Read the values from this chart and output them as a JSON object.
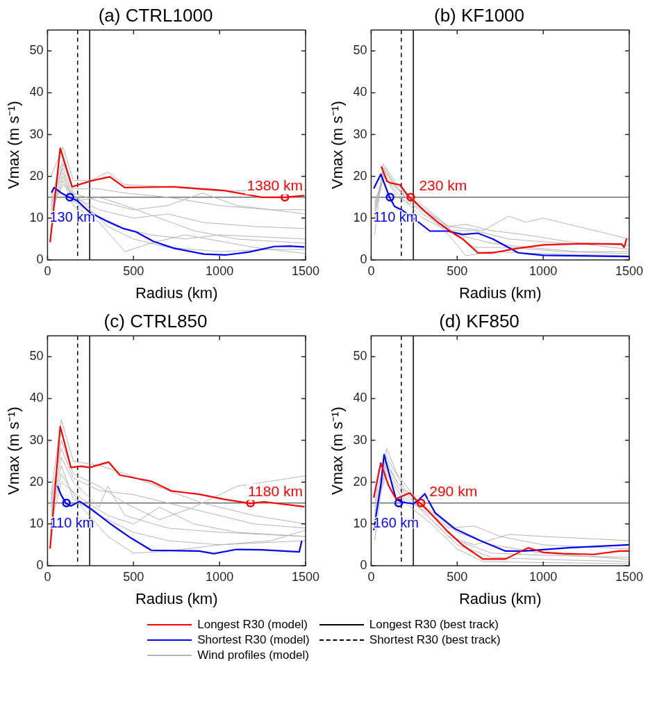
{
  "chart_data": [
    {
      "type": "line",
      "title": "(a) CTRL1000",
      "xlabel": "Radius (km)",
      "ylabel": "Vmax (m s⁻¹)",
      "xlim": [
        0,
        1500
      ],
      "xticks": [
        0,
        500,
        1000,
        1500
      ],
      "ylim": [
        0,
        55
      ],
      "yticks": [
        0,
        10,
        20,
        30,
        40,
        50
      ],
      "legend": "bottom",
      "series": [
        {
          "name": "Longest R30 (model)",
          "color": "#ff0000",
          "x": [
            15,
            74,
            143,
            252,
            362,
            449,
            734,
            1026,
            1245,
            1383,
            1493
          ],
          "values": [
            4.2,
            26.7,
            17.5,
            18.9,
            19.9,
            17.3,
            17.5,
            16.6,
            15,
            15,
            15.4
          ]
        },
        {
          "name": "Shortest R30 (model)",
          "color": "#0000ff",
          "x": [
            23,
            38,
            77,
            125,
            172,
            245,
            340,
            442,
            515,
            617,
            734,
            909,
            1040,
            1172,
            1317,
            1405,
            1493
          ],
          "values": [
            16.1,
            17.3,
            16.1,
            15,
            14.2,
            11.4,
            9.4,
            7.5,
            6.7,
            4.4,
            2.8,
            1.4,
            1.2,
            1.9,
            3.2,
            3.3,
            3.1
          ]
        },
        {
          "name": "Wind profiles (model)",
          "color": "#b4b4b4",
          "x": [
            20,
            90,
            150,
            250,
            350,
            450,
            700,
            1000,
            1500
          ],
          "values": [
            20,
            27,
            19,
            19,
            21,
            18,
            17.5,
            16.5,
            16.7
          ]
        },
        {
          "color": "#b4b4b4",
          "x": [
            20,
            90,
            150,
            300,
            500,
            700,
            900,
            1100,
            1500
          ],
          "values": [
            15,
            24,
            16,
            14,
            12,
            13,
            16,
            13,
            11
          ]
        },
        {
          "color": "#b4b4b4",
          "x": [
            20,
            90,
            150,
            300,
            500,
            700,
            900,
            1200,
            1500
          ],
          "values": [
            14,
            22,
            15,
            12,
            10,
            11,
            9,
            8,
            7.5
          ]
        },
        {
          "color": "#b4b4b4",
          "x": [
            20,
            90,
            150,
            300,
            400,
            600,
            800,
            1000,
            1500
          ],
          "values": [
            13,
            21,
            14,
            10,
            8,
            6,
            5,
            6,
            5
          ]
        },
        {
          "color": "#b4b4b4",
          "x": [
            20,
            90,
            150,
            300,
            450,
            650,
            850,
            1100,
            1500
          ],
          "values": [
            12,
            20,
            14,
            15,
            13,
            10,
            7,
            5,
            4
          ]
        },
        {
          "color": "#b4b4b4",
          "x": [
            20,
            90,
            150,
            300,
            450,
            600,
            800,
            1200,
            1500
          ],
          "values": [
            11,
            19,
            13,
            9,
            2,
            4,
            6,
            3,
            1.5
          ]
        },
        {
          "color": "#b4b4b4",
          "x": [
            20,
            90,
            150,
            300,
            450,
            700,
            1000,
            1300,
            1500
          ],
          "values": [
            13,
            23,
            17,
            17,
            16,
            15,
            13,
            12,
            12
          ]
        },
        {
          "color": "#b4b4b4",
          "x": [
            20,
            90,
            200,
            350,
            500,
            700,
            1000,
            1300,
            1500
          ],
          "values": [
            12,
            18,
            14,
            8,
            5,
            3,
            2,
            2.5,
            2.5
          ]
        },
        {
          "type": "scatter",
          "marker": "circle",
          "color": "#ff0000",
          "x": [
            1380
          ],
          "values": [
            15
          ]
        },
        {
          "type": "scatter",
          "marker": "circle",
          "color": "#0000ff",
          "x": [
            130
          ],
          "values": [
            15
          ]
        }
      ],
      "ref_lines": [
        {
          "axis": "x",
          "value": 245,
          "label": "Longest R30 (best track)",
          "color": "#000000",
          "line_style": "solid"
        },
        {
          "axis": "x",
          "value": 175,
          "label": "Shortest R30 (best track)",
          "color": "#000000",
          "line_style": "dashed"
        },
        {
          "axis": "y",
          "value": 15,
          "color": "#707070",
          "line_style": "solid"
        }
      ],
      "annotations": [
        {
          "text": "1380 km",
          "x": 1380,
          "y": 15
        },
        {
          "text": "130 km",
          "x": 130,
          "y": 15
        }
      ]
    },
    {
      "type": "line",
      "title": "(b) KF1000",
      "xlabel": "Radius (km)",
      "ylabel": "Vmax (m s⁻¹)",
      "xlim": [
        0,
        1500
      ],
      "xticks": [
        0,
        500,
        1000,
        1500
      ],
      "ylim": [
        0,
        55
      ],
      "yticks": [
        0,
        10,
        20,
        30,
        40,
        50
      ],
      "series": [
        {
          "color": "#ff0000",
          "x": [
            59,
            92,
            122,
            166,
            221,
            254,
            312,
            386,
            459,
            532,
            620,
            708,
            855,
            1001,
            1221,
            1456,
            1470,
            1485
          ],
          "values": [
            22.4,
            18.8,
            18.3,
            18,
            15,
            13.9,
            11.6,
            9.1,
            6.9,
            5,
            1.7,
            1.7,
            2.8,
            3.6,
            3.9,
            3.8,
            3,
            5.1
          ]
        },
        {
          "color": "#0000ff",
          "x": [
            15,
            56,
            107,
            136,
            180,
            254,
            342,
            444,
            532,
            620,
            708,
            855,
            1001,
            1500
          ],
          "values": [
            17.1,
            20.5,
            15,
            12.8,
            11.9,
            9.7,
            6.9,
            6.9,
            6.1,
            6.4,
            5,
            1.7,
            1.1,
            0.8
          ]
        },
        {
          "color": "#b4b4b4",
          "x": [
            20,
            70,
            150,
            300,
            450,
            650,
            800,
            900,
            1000,
            1200,
            1500
          ],
          "values": [
            6,
            23,
            18,
            12,
            8,
            7,
            10.5,
            9,
            10,
            8,
            5
          ]
        },
        {
          "color": "#b4b4b4",
          "x": [
            20,
            70,
            150,
            300,
            450,
            600,
            800,
            1100,
            1500
          ],
          "values": [
            10,
            22,
            17,
            11,
            7,
            7,
            5,
            4,
            3.5
          ]
        },
        {
          "color": "#b4b4b4",
          "x": [
            20,
            70,
            150,
            300,
            450,
            600,
            800,
            1100,
            1500
          ],
          "values": [
            12,
            21,
            16,
            10,
            7,
            3,
            3,
            2,
            1.5
          ]
        },
        {
          "color": "#b4b4b4",
          "x": [
            20,
            80,
            150,
            300,
            450,
            550,
            700,
            900,
            1200,
            1500
          ],
          "values": [
            13,
            22,
            17,
            13,
            8,
            8.5,
            7,
            6,
            4,
            2.5
          ]
        },
        {
          "color": "#b4b4b4",
          "x": [
            20,
            80,
            150,
            300,
            450,
            550,
            700,
            1000,
            1500
          ],
          "values": [
            14,
            20,
            15,
            12,
            6,
            1,
            2,
            1.5,
            1
          ]
        },
        {
          "color": "#b4b4b4",
          "x": [
            20,
            80,
            200,
            350,
            500,
            700,
            900,
            1200,
            1500
          ],
          "values": [
            11,
            21,
            15,
            11,
            6,
            4,
            3,
            2,
            2
          ]
        },
        {
          "type": "scatter",
          "marker": "circle",
          "color": "#ff0000",
          "x": [
            230
          ],
          "values": [
            15
          ]
        },
        {
          "type": "scatter",
          "marker": "circle",
          "color": "#0000ff",
          "x": [
            110
          ],
          "values": [
            15
          ]
        }
      ],
      "ref_lines": [
        {
          "axis": "x",
          "value": 245,
          "color": "#000000",
          "line_style": "solid"
        },
        {
          "axis": "x",
          "value": 175,
          "color": "#000000",
          "line_style": "dashed"
        },
        {
          "axis": "y",
          "value": 15,
          "color": "#707070",
          "line_style": "solid"
        }
      ],
      "annotations": [
        {
          "text": "230 km",
          "x": 230,
          "y": 15
        },
        {
          "text": "110 km",
          "x": 110,
          "y": 15
        }
      ]
    },
    {
      "type": "line",
      "title": "(c) CTRL850",
      "xlabel": "Radius (km)",
      "ylabel": "Vmax (m s⁻¹)",
      "xlim": [
        0,
        1500
      ],
      "xticks": [
        0,
        500,
        1000,
        1500
      ],
      "ylim": [
        0,
        55
      ],
      "yticks": [
        0,
        10,
        20,
        30,
        40,
        50
      ],
      "series": [
        {
          "color": "#ff0000",
          "x": [
            15,
            74,
            136,
            194,
            245,
            355,
            420,
            515,
            603,
            719,
            880,
            1026,
            1179,
            1259,
            1493
          ],
          "values": [
            4.1,
            33.3,
            23.5,
            23.8,
            23.5,
            24.8,
            21.7,
            20.9,
            20.2,
            17.9,
            17.1,
            15.9,
            14.9,
            15.3,
            14.1
          ]
        },
        {
          "color": "#0000ff",
          "x": [
            58,
            77,
            107,
            136,
            187,
            245,
            369,
            486,
            603,
            880,
            967,
            1099,
            1245,
            1463,
            1478
          ],
          "values": [
            19.1,
            17.1,
            14.9,
            14.3,
            15.4,
            13.8,
            9.9,
            6.6,
            3.7,
            3.5,
            2.9,
            3.9,
            3.8,
            3.3,
            6
          ]
        },
        {
          "color": "#b4b4b4",
          "x": [
            20,
            80,
            150,
            300,
            450,
            700,
            900,
            1200,
            1500
          ],
          "values": [
            17,
            35,
            25,
            24,
            22,
            18,
            15,
            12,
            10
          ]
        },
        {
          "color": "#b4b4b4",
          "x": [
            20,
            80,
            150,
            300,
            450,
            650,
            850,
            1100,
            1500
          ],
          "values": [
            15,
            30,
            22,
            19,
            15,
            11,
            14,
            19,
            21.5
          ]
        },
        {
          "color": "#b4b4b4",
          "x": [
            20,
            80,
            150,
            300,
            350,
            450,
            700,
            1000,
            1500
          ],
          "values": [
            14,
            26,
            20,
            14,
            19,
            12,
            9,
            8,
            7
          ]
        },
        {
          "color": "#b4b4b4",
          "x": [
            20,
            80,
            150,
            300,
            500,
            700,
            1000,
            1300,
            1500
          ],
          "values": [
            13,
            24,
            16,
            12,
            8,
            6,
            5,
            6,
            8.5
          ]
        },
        {
          "color": "#b4b4b4",
          "x": [
            20,
            80,
            200,
            350,
            500,
            700,
            1000,
            1500
          ],
          "values": [
            12,
            22,
            14,
            7,
            3,
            3.5,
            5,
            6
          ]
        },
        {
          "color": "#b4b4b4",
          "x": [
            20,
            80,
            150,
            300,
            500,
            700,
            900,
            1200,
            1500
          ],
          "values": [
            16,
            28,
            21,
            18,
            17,
            15,
            13,
            10,
            9
          ]
        },
        {
          "color": "#b4b4b4",
          "x": [
            20,
            80,
            200,
            350,
            500,
            650,
            850,
            1100,
            1500
          ],
          "values": [
            10,
            20,
            16,
            12,
            10,
            14,
            10,
            8,
            7
          ]
        },
        {
          "type": "scatter",
          "marker": "circle",
          "color": "#ff0000",
          "x": [
            1180
          ],
          "values": [
            15
          ]
        },
        {
          "type": "scatter",
          "marker": "circle",
          "color": "#0000ff",
          "x": [
            110
          ],
          "values": [
            15
          ]
        }
      ],
      "ref_lines": [
        {
          "axis": "x",
          "value": 245,
          "color": "#000000",
          "line_style": "solid"
        },
        {
          "axis": "x",
          "value": 175,
          "color": "#000000",
          "line_style": "dashed"
        },
        {
          "axis": "y",
          "value": 15,
          "color": "#707070",
          "line_style": "solid"
        }
      ],
      "annotations": [
        {
          "text": "1180 km",
          "x": 1180,
          "y": 15
        },
        {
          "text": "110 km",
          "x": 110,
          "y": 15
        }
      ]
    },
    {
      "type": "line",
      "title": "(d) KF850",
      "xlabel": "Radius (km)",
      "ylabel": "Vmax (m s⁻¹)",
      "xlim": [
        0,
        1500
      ],
      "xticks": [
        0,
        500,
        1000,
        1500
      ],
      "ylim": [
        0,
        55
      ],
      "yticks": [
        0,
        10,
        20,
        30,
        40,
        50
      ],
      "series": [
        {
          "color": "#ff0000",
          "x": [
            15,
            56,
            100,
            144,
            224,
            268,
            290,
            356,
            444,
            532,
            649,
            781,
            913,
            1001,
            1118,
            1294,
            1441,
            1500
          ],
          "values": [
            16.3,
            24.6,
            19.3,
            16,
            17.4,
            15.4,
            14.8,
            12.1,
            8.2,
            4.9,
            1.6,
            1.6,
            4.3,
            3.2,
            2.9,
            2.7,
            3.5,
            3.5
          ]
        },
        {
          "color": "#0000ff",
          "x": [
            15,
            56,
            75,
            107,
            144,
            173,
            246,
            283,
            312,
            371,
            488,
            635,
            781,
            884,
            1148,
            1500
          ],
          "values": [
            8.5,
            19.3,
            26.6,
            21.6,
            16,
            15.3,
            14.8,
            16,
            17.2,
            12.7,
            8.8,
            6,
            3.5,
            3.5,
            4.3,
            5
          ]
        },
        {
          "color": "#b4b4b4",
          "x": [
            20,
            90,
            150,
            300,
            450,
            600,
            750,
            1000,
            1500
          ],
          "values": [
            6,
            28,
            22,
            14,
            9,
            9.5,
            7,
            5,
            4
          ]
        },
        {
          "color": "#b4b4b4",
          "x": [
            20,
            90,
            150,
            300,
            450,
            600,
            800,
            1000,
            1500
          ],
          "values": [
            12,
            25,
            20,
            13,
            7,
            5,
            7.5,
            7,
            6
          ]
        },
        {
          "color": "#b4b4b4",
          "x": [
            20,
            90,
            200,
            350,
            500,
            700,
            1000,
            1500
          ],
          "values": [
            15,
            24,
            17,
            11,
            5,
            2,
            1.5,
            1
          ]
        },
        {
          "color": "#b4b4b4",
          "x": [
            20,
            90,
            200,
            350,
            500,
            700,
            1000,
            1500
          ],
          "values": [
            14,
            23,
            16,
            12,
            6,
            3,
            2.5,
            2
          ]
        },
        {
          "color": "#b4b4b4",
          "x": [
            20,
            90,
            200,
            350,
            500,
            650,
            900,
            1500
          ],
          "values": [
            13,
            22,
            15,
            10,
            4,
            1,
            0.8,
            0.5
          ]
        },
        {
          "color": "#b4b4b4",
          "x": [
            20,
            90,
            200,
            350,
            500,
            700,
            1000,
            1500
          ],
          "values": [
            16,
            26,
            18,
            13,
            8,
            5,
            3,
            1.5
          ]
        },
        {
          "type": "scatter",
          "marker": "circle",
          "color": "#ff0000",
          "x": [
            290
          ],
          "values": [
            15
          ]
        },
        {
          "type": "scatter",
          "marker": "circle",
          "color": "#0000ff",
          "x": [
            160
          ],
          "values": [
            15
          ]
        }
      ],
      "ref_lines": [
        {
          "axis": "x",
          "value": 245,
          "color": "#000000",
          "line_style": "solid"
        },
        {
          "axis": "x",
          "value": 175,
          "color": "#000000",
          "line_style": "dashed"
        },
        {
          "axis": "y",
          "value": 15,
          "color": "#707070",
          "line_style": "solid"
        }
      ],
      "annotations": [
        {
          "text": "290 km",
          "x": 290,
          "y": 15
        },
        {
          "text": "160 km",
          "x": 160,
          "y": 15
        }
      ]
    }
  ]
}
